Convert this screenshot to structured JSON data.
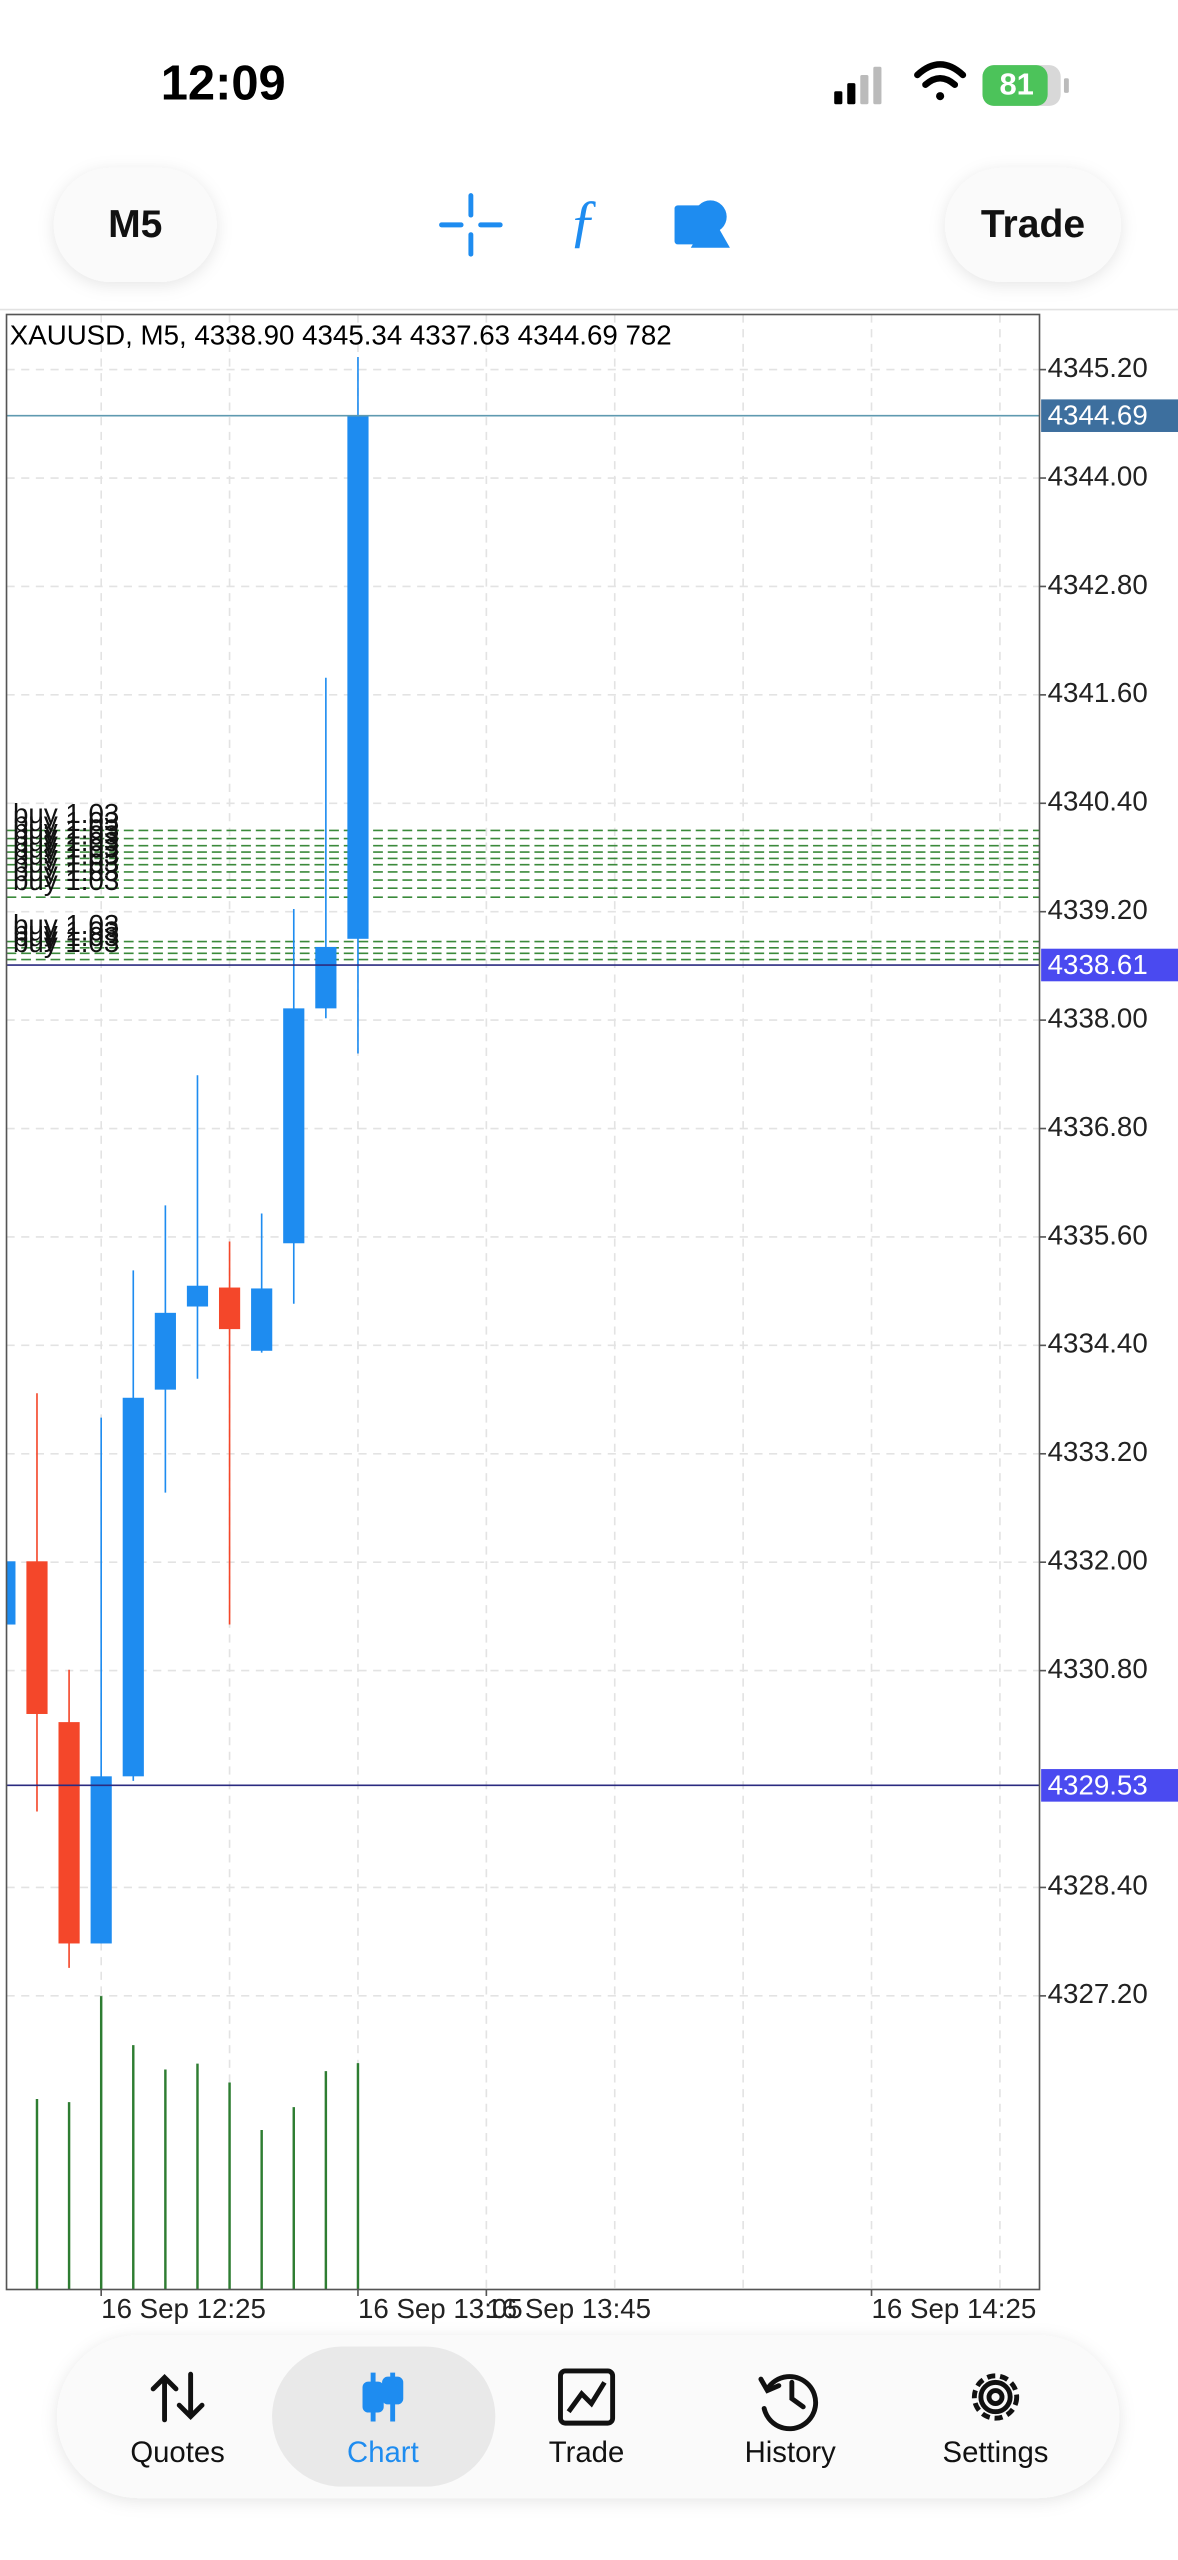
{
  "status_bar": {
    "time": "12:09",
    "battery": "81"
  },
  "toolbar": {
    "timeframe": "M5",
    "trade": "Trade"
  },
  "chart_data": {
    "type": "candlestick",
    "title": "XAUUSD, M5, 4338.90 4345.34 4337.63 4344.69 782",
    "categories": [
      null,
      null,
      null,
      "16 Sep 12:25",
      null,
      null,
      null,
      null,
      null,
      null,
      null,
      "16 Sep 13:05",
      null,
      null,
      null,
      "16 Sep 13:45",
      null,
      null,
      null,
      null,
      null,
      null,
      null,
      null,
      null,
      null,
      null,
      "16 Sep 14:25",
      null,
      null,
      null,
      null,
      null
    ],
    "open": [
      4331.31,
      4332.01,
      4330.23,
      4327.78,
      4329.63,
      4333.91,
      4334.83,
      4335.04,
      4334.34,
      4335.53,
      4338.13,
      4338.9,
      null,
      null,
      null,
      null,
      null,
      null,
      null,
      null,
      null,
      null,
      null,
      null,
      null,
      null,
      null,
      null,
      null,
      null,
      null,
      null,
      null
    ],
    "high": [
      4332.01,
      4333.87,
      4330.81,
      4333.6,
      4335.23,
      4335.95,
      4337.39,
      4335.55,
      4335.86,
      4339.23,
      4341.79,
      4345.34,
      null,
      null,
      null,
      null,
      null,
      null,
      null,
      null,
      null,
      null,
      null,
      null,
      null,
      null,
      null,
      null,
      null,
      null,
      null,
      null,
      null
    ],
    "low": [
      4331.31,
      4329.24,
      4327.51,
      4327.78,
      4329.58,
      4332.77,
      4334.03,
      4331.31,
      4334.32,
      4334.86,
      4338.02,
      4337.63,
      null,
      null,
      null,
      null,
      null,
      null,
      null,
      null,
      null,
      null,
      null,
      null,
      null,
      null,
      null,
      null,
      null,
      null,
      null,
      null,
      null
    ],
    "close": [
      4332.01,
      4330.32,
      4327.78,
      4329.63,
      4333.82,
      4334.76,
      4335.06,
      4334.58,
      4335.03,
      4338.13,
      4338.81,
      4344.69,
      null,
      null,
      null,
      null,
      null,
      null,
      null,
      null,
      null,
      null,
      null,
      null,
      null,
      null,
      null,
      null,
      null,
      null,
      null,
      null,
      null
    ],
    "volume": [
      null,
      658,
      647,
      1013,
      844,
      760,
      780,
      715,
      551,
      630,
      754,
      782,
      null,
      null,
      null,
      null,
      null,
      null,
      null,
      null,
      null,
      null,
      null,
      null,
      null,
      null,
      null,
      null,
      null,
      null,
      null,
      null,
      null
    ],
    "bull_color": "#1e8cf0",
    "bear_color": "#f4472a",
    "volume_color": "#2e7d32",
    "ylim": [
      4323.95,
      4345.81
    ],
    "yticks": [
      {
        "value": 4345.2,
        "label": "4345.20"
      },
      {
        "value": 4344,
        "label": "4344.00"
      },
      {
        "value": 4342.8,
        "label": "4342.80"
      },
      {
        "value": 4341.6,
        "label": "4341.60"
      },
      {
        "value": 4340.4,
        "label": "4340.40"
      },
      {
        "value": 4339.2,
        "label": "4339.20"
      },
      {
        "value": 4338,
        "label": "4338.00"
      },
      {
        "value": 4336.8,
        "label": "4336.80"
      },
      {
        "value": 4335.6,
        "label": "4335.60"
      },
      {
        "value": 4334.4,
        "label": "4334.40"
      },
      {
        "value": 4333.2,
        "label": "4333.20"
      },
      {
        "value": 4332,
        "label": "4332.00"
      },
      {
        "value": 4330.8,
        "label": "4330.80"
      },
      {
        "value": 4328.4,
        "label": "4328.40"
      },
      {
        "value": 4327.2,
        "label": "4327.20"
      }
    ],
    "grid": true,
    "price_lines": [
      {
        "value": 4344.69,
        "color": "#3d6f9e"
      },
      {
        "value": 4338.61,
        "color": "#4a4af0"
      },
      {
        "value": 4329.53,
        "color": "#4a4af0"
      }
    ],
    "orders": [
      {
        "label": "buy 1.03",
        "price": 4340.1
      },
      {
        "label": "buy 1.03",
        "price": 4340.01
      },
      {
        "label": "buy 1.03",
        "price": 4339.93
      },
      {
        "label": "buy 1.03",
        "price": 4339.86
      },
      {
        "label": "buy 1.03",
        "price": 4339.79
      },
      {
        "label": "buy 1.03",
        "price": 4339.72
      },
      {
        "label": "buy 1.03",
        "price": 4339.64
      },
      {
        "label": "buy 1.03",
        "price": 4339.55
      },
      {
        "label": "buy 1.03",
        "price": 4339.46
      },
      {
        "label": "buy 1.03",
        "price": 4339.36
      },
      {
        "label": "buy 1.03",
        "price": 4338.87
      },
      {
        "label": "buy 1.03",
        "price": 4338.8
      },
      {
        "label": "buy 1.03",
        "price": 4338.74
      },
      {
        "label": "buy 1.03",
        "price": 4338.67
      }
    ],
    "order_color": "#3b8a3b"
  },
  "tab_bar": {
    "tabs": [
      {
        "label": "Quotes"
      },
      {
        "label": "Chart"
      },
      {
        "label": "Trade"
      },
      {
        "label": "History"
      },
      {
        "label": "Settings"
      }
    ]
  }
}
